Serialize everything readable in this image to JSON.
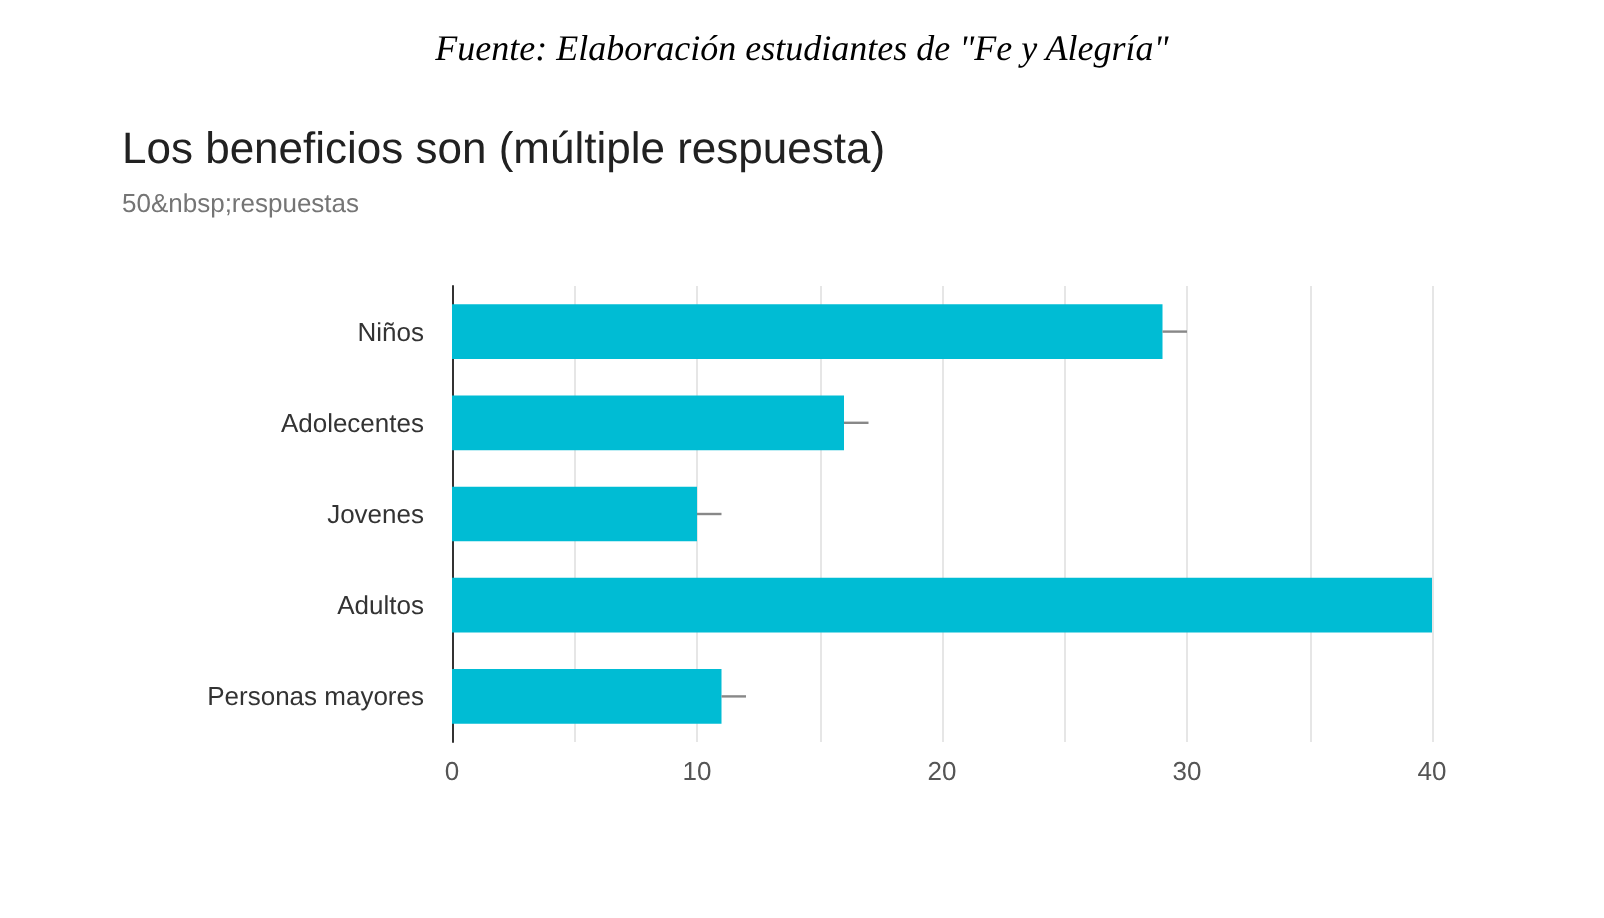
{
  "chart_data": {
    "type": "bar",
    "orientation": "horizontal",
    "title": "Los beneficios son (múltiple respuesta)",
    "subtitle": "50&nbsp;respuestas",
    "annotations": [
      "Fuente: Elaboración estudiantes de \"Fe y Alegría\""
    ],
    "categories": [
      "Niños",
      "Adolecentes",
      "Jovenes",
      "Adultos",
      "Personas mayores"
    ],
    "values": [
      29,
      16,
      10,
      40,
      11
    ],
    "color": "#00bcd4",
    "errors": [
      [
        29,
        30
      ],
      [
        16,
        17
      ],
      [
        10,
        11
      ],
      null,
      [
        11,
        12
      ]
    ],
    "xlim": [
      0,
      40
    ],
    "xticks": [
      0,
      {
        "value": 5,
        "label": null
      },
      10,
      {
        "value": 15,
        "label": null
      },
      20,
      {
        "value": 25,
        "label": null
      },
      30,
      {
        "value": 35,
        "label": null
      },
      40
    ],
    "grid": "x"
  }
}
